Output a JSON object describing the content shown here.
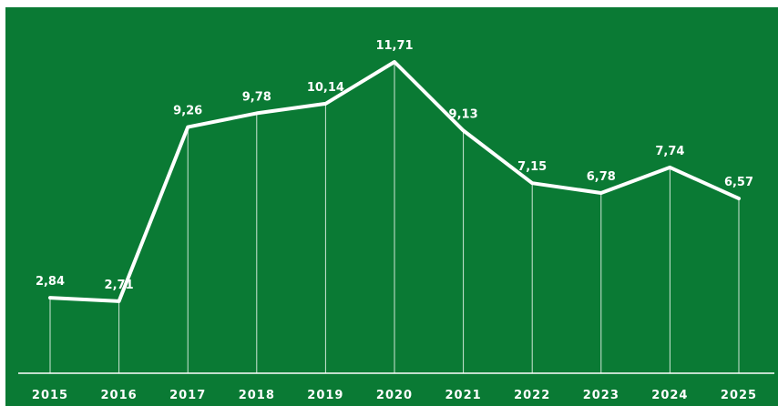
{
  "chart_data": {
    "type": "line",
    "title": "",
    "xlabel": "",
    "ylabel": "",
    "categories": [
      "2015",
      "2016",
      "2017",
      "2018",
      "2019",
      "2020",
      "2021",
      "2022",
      "2023",
      "2024",
      "2025"
    ],
    "values": [
      2.84,
      2.71,
      9.26,
      9.78,
      10.14,
      11.71,
      9.13,
      7.15,
      6.78,
      7.74,
      6.57
    ],
    "value_labels": [
      "2,84",
      "2,71",
      "9,26",
      "9,78",
      "10,14",
      "11,71",
      "9,13",
      "7,15",
      "6,78",
      "7,74",
      "6,57"
    ],
    "ylim": [
      0,
      12.5
    ],
    "grid": false,
    "legend": "none",
    "colors": {
      "background": "#0a7a34",
      "line": "#ffffff",
      "drop_lines": "#cfe7d6",
      "baseline": "#ffffff",
      "text": "#ffffff"
    }
  }
}
